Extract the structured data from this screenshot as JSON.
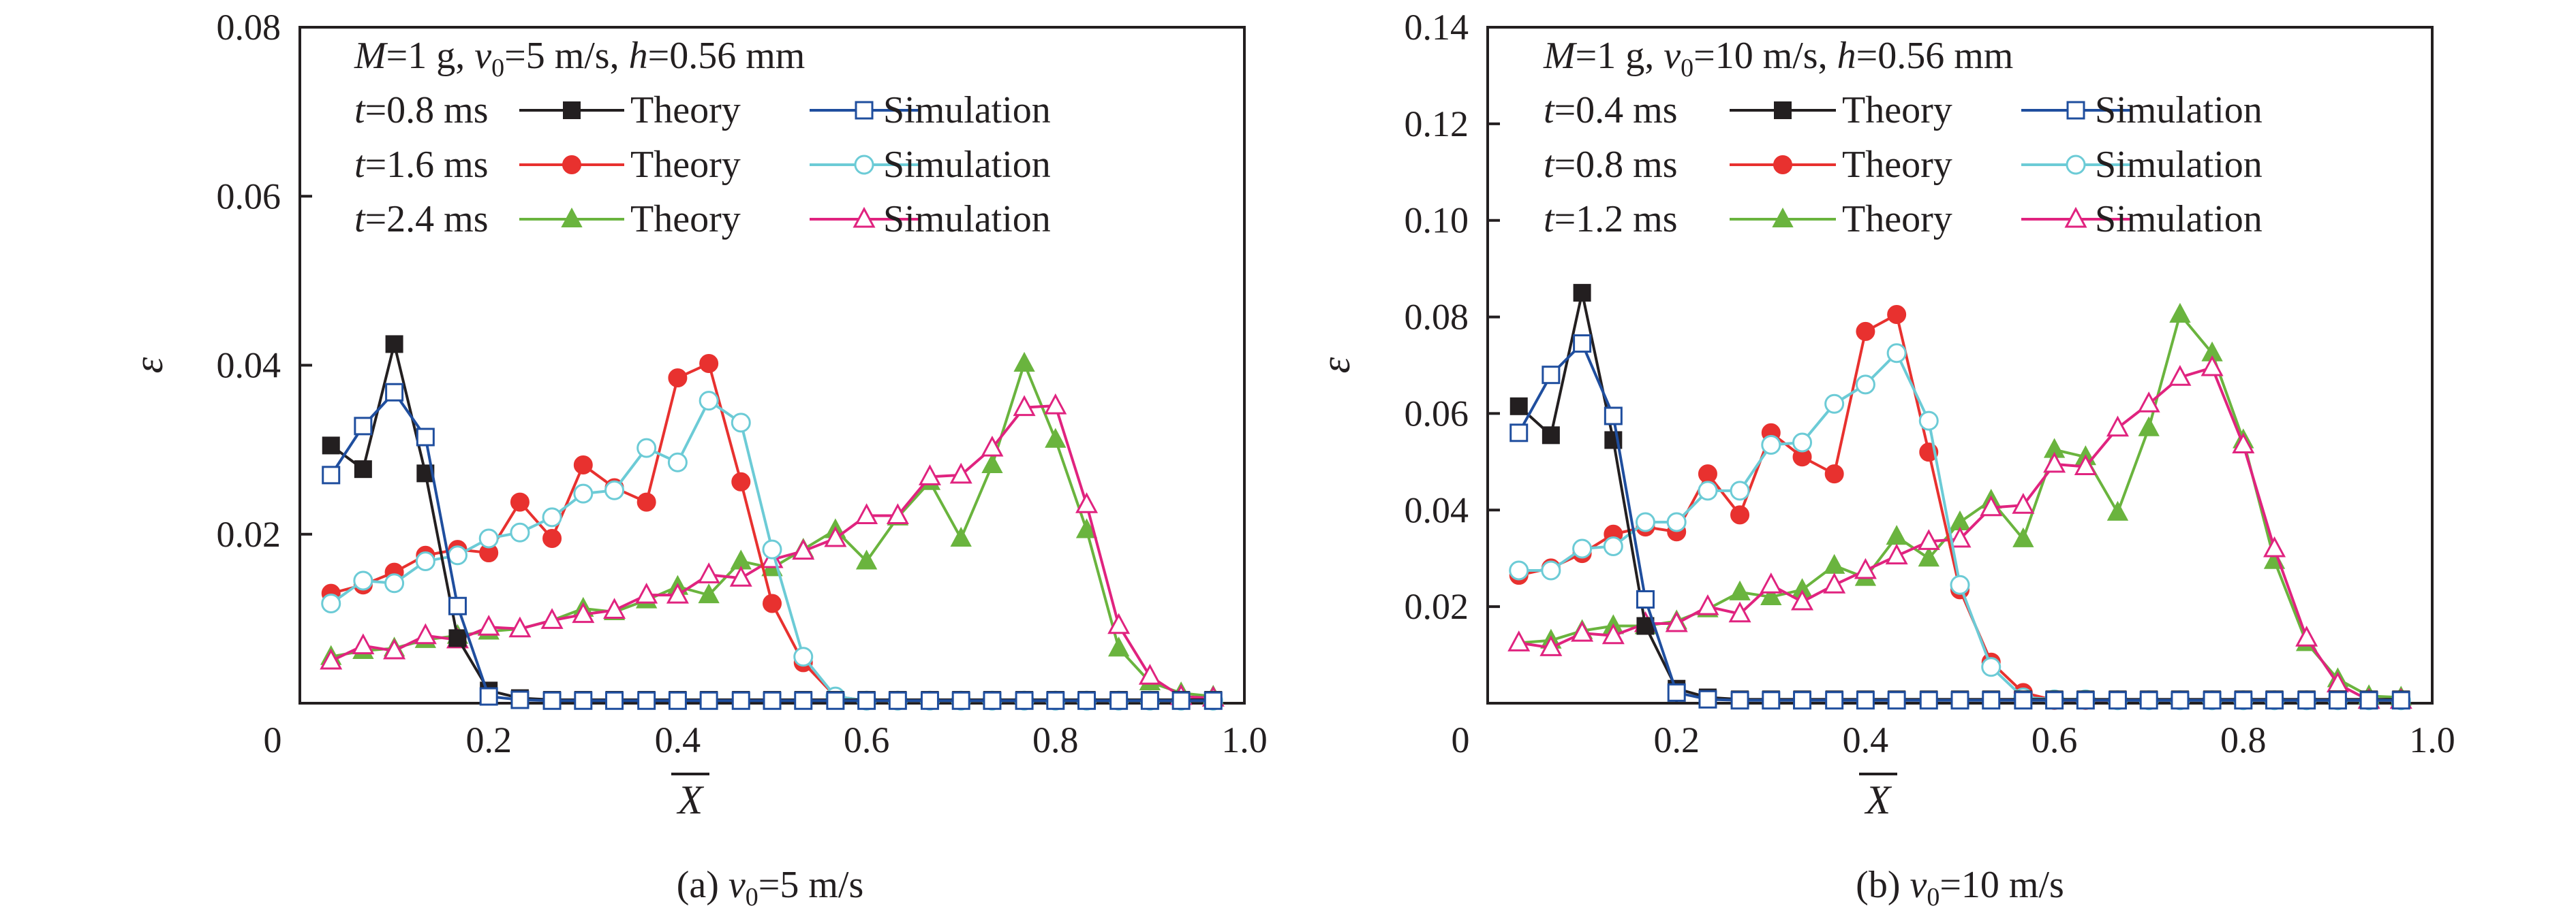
{
  "colors": {
    "theory_t1": "#231f20",
    "sim_t1": "#1f4e9e",
    "theory_t2": "#e8312f",
    "sim_t2": "#6ccbd6",
    "theory_t3": "#6ab43e",
    "sim_t3": "#e0237f",
    "axis": "#231f20"
  },
  "chart_data": [
    {
      "type": "line",
      "panel": "a",
      "caption": {
        "prefix": "(a) ",
        "var": "v",
        "sub": "0",
        "suffix": "=5 m/s"
      },
      "header": {
        "M": "=1 g, ",
        "v": "v",
        "sub": "0",
        "vval": "=5 m/s, ",
        "h": "h",
        "hval": "=0.56 mm"
      },
      "xlabel": "X",
      "ylabel": "ε",
      "xlim": [
        0,
        1.0
      ],
      "ylim": [
        0,
        0.08
      ],
      "xticks": [
        0,
        0.2,
        0.4,
        0.6,
        0.8,
        1.0
      ],
      "xtick_labels": [
        "0",
        "0.2",
        "0.4",
        "0.6",
        "0.8",
        "1.0"
      ],
      "yticks": [
        0.02,
        0.04,
        0.06,
        0.08
      ],
      "ytick_labels": [
        "0.02",
        "0.04",
        "0.06",
        "0.08"
      ],
      "legend_rows": [
        {
          "t": "=0.8 ms",
          "theory": "Theory",
          "simulation": "Simulation"
        },
        {
          "t": "=1.6 ms",
          "theory": "Theory",
          "simulation": "Simulation"
        },
        {
          "t": "=2.4 ms",
          "theory": "Theory",
          "simulation": "Simulation"
        }
      ],
      "x": [
        0.033,
        0.067,
        0.1,
        0.133,
        0.167,
        0.2,
        0.233,
        0.267,
        0.3,
        0.333,
        0.367,
        0.4,
        0.433,
        0.467,
        0.5,
        0.533,
        0.567,
        0.6,
        0.633,
        0.667,
        0.7,
        0.733,
        0.767,
        0.8,
        0.833,
        0.867,
        0.9,
        0.933,
        0.967
      ],
      "series": [
        {
          "name": "Theory",
          "row": 0,
          "kind": "theory",
          "marker": "square-filled",
          "color_key": "theory_t1",
          "values": [
            0.0305,
            0.0277,
            0.0425,
            0.0272,
            0.0077,
            0.0015,
            0.0006,
            0.0004,
            0.0004,
            0.0004,
            0.0004,
            0.0004,
            0.0004,
            0.0004,
            0.0004,
            0.0004,
            0.0004,
            0.0004,
            0.0004,
            0.0004,
            0.0004,
            0.0004,
            0.0004,
            0.0004,
            0.0004,
            0.0004,
            0.0004,
            0.0004,
            0.0004
          ]
        },
        {
          "name": "Simulation",
          "row": 0,
          "kind": "simulation",
          "marker": "square-open",
          "color_key": "sim_t1",
          "values": [
            0.027,
            0.0328,
            0.0368,
            0.0315,
            0.0115,
            0.0008,
            0.0004,
            0.0003,
            0.0003,
            0.0003,
            0.0003,
            0.0003,
            0.0003,
            0.0003,
            0.0003,
            0.0003,
            0.0003,
            0.0003,
            0.0003,
            0.0003,
            0.0003,
            0.0003,
            0.0003,
            0.0003,
            0.0003,
            0.0003,
            0.0003,
            0.0003,
            0.0003
          ]
        },
        {
          "name": "Theory",
          "row": 1,
          "kind": "theory",
          "marker": "circle-filled",
          "color_key": "theory_t2",
          "values": [
            0.013,
            0.014,
            0.0155,
            0.0175,
            0.0182,
            0.0178,
            0.0238,
            0.0195,
            0.0282,
            0.0255,
            0.0238,
            0.0385,
            0.0402,
            0.0262,
            0.0118,
            0.0048,
            0.0008,
            0.0003,
            0.0003,
            0.0003,
            0.0003,
            0.0003,
            0.0003,
            0.0003,
            0.0003,
            0.0003,
            0.0003,
            0.0003,
            0.0003
          ]
        },
        {
          "name": "Simulation",
          "row": 1,
          "kind": "simulation",
          "marker": "circle-open",
          "color_key": "sim_t2",
          "values": [
            0.0118,
            0.0145,
            0.0142,
            0.0168,
            0.0175,
            0.0195,
            0.0202,
            0.022,
            0.0248,
            0.0252,
            0.0302,
            0.0285,
            0.0358,
            0.0332,
            0.0182,
            0.0055,
            0.0008,
            0.0003,
            0.0003,
            0.0003,
            0.0003,
            0.0003,
            0.0003,
            0.0003,
            0.0003,
            0.0003,
            0.0003,
            0.0003,
            0.0003
          ]
        },
        {
          "name": "Theory",
          "row": 2,
          "kind": "theory",
          "marker": "triangle-filled",
          "color_key": "theory_t3",
          "values": [
            0.0055,
            0.0062,
            0.0065,
            0.0075,
            0.008,
            0.0085,
            0.0088,
            0.0098,
            0.0112,
            0.0108,
            0.0122,
            0.0138,
            0.0128,
            0.0168,
            0.016,
            0.0182,
            0.0205,
            0.0168,
            0.022,
            0.0262,
            0.0195,
            0.0282,
            0.0402,
            0.0312,
            0.0205,
            0.0065,
            0.0025,
            0.0012,
            0.0008
          ]
        },
        {
          "name": "Simulation",
          "row": 2,
          "kind": "simulation",
          "marker": "triangle-open",
          "color_key": "sim_t3",
          "values": [
            0.005,
            0.0068,
            0.0062,
            0.008,
            0.0075,
            0.009,
            0.0088,
            0.0098,
            0.0105,
            0.011,
            0.0128,
            0.0128,
            0.0152,
            0.0148,
            0.017,
            0.018,
            0.0195,
            0.0222,
            0.0222,
            0.0268,
            0.027,
            0.0302,
            0.035,
            0.0352,
            0.0235,
            0.0092,
            0.0032,
            0.0008,
            0.0006
          ]
        }
      ]
    },
    {
      "type": "line",
      "panel": "b",
      "caption": {
        "prefix": "(b) ",
        "var": "v",
        "sub": "0",
        "suffix": "=10 m/s"
      },
      "header": {
        "M": "=1 g, ",
        "v": "v",
        "sub": "0",
        "vval": "=10 m/s, ",
        "h": "h",
        "hval": "=0.56 mm"
      },
      "xlabel": "X",
      "ylabel": "ε",
      "xlim": [
        0,
        1.0
      ],
      "ylim": [
        0,
        0.14
      ],
      "xticks": [
        0,
        0.2,
        0.4,
        0.6,
        0.8,
        1.0
      ],
      "xtick_labels": [
        "0",
        "0.2",
        "0.4",
        "0.6",
        "0.8",
        "1.0"
      ],
      "yticks": [
        0.02,
        0.04,
        0.06,
        0.08,
        0.1,
        0.12,
        0.14
      ],
      "ytick_labels": [
        "0.02",
        "0.04",
        "0.06",
        "0.08",
        "0.10",
        "0.12",
        "0.14"
      ],
      "legend_rows": [
        {
          "t": "=0.4 ms",
          "theory": "Theory",
          "simulation": "Simulation"
        },
        {
          "t": "=0.8 ms",
          "theory": "Theory",
          "simulation": "Simulation"
        },
        {
          "t": "=1.2 ms",
          "theory": "Theory",
          "simulation": "Simulation"
        }
      ],
      "x": [
        0.033,
        0.067,
        0.1,
        0.133,
        0.167,
        0.2,
        0.233,
        0.267,
        0.3,
        0.333,
        0.367,
        0.4,
        0.433,
        0.467,
        0.5,
        0.533,
        0.567,
        0.6,
        0.633,
        0.667,
        0.7,
        0.733,
        0.767,
        0.8,
        0.833,
        0.867,
        0.9,
        0.933,
        0.967
      ],
      "series": [
        {
          "name": "Theory",
          "row": 0,
          "kind": "theory",
          "marker": "square-filled",
          "color_key": "theory_t1",
          "values": [
            0.0615,
            0.0555,
            0.085,
            0.0545,
            0.016,
            0.003,
            0.0012,
            0.0008,
            0.0008,
            0.0008,
            0.0008,
            0.0008,
            0.0008,
            0.0008,
            0.0008,
            0.0008,
            0.0008,
            0.0008,
            0.0008,
            0.0008,
            0.0008,
            0.0008,
            0.0008,
            0.0008,
            0.0008,
            0.0008,
            0.0008,
            0.0008,
            0.0008
          ]
        },
        {
          "name": "Simulation",
          "row": 0,
          "kind": "simulation",
          "marker": "square-open",
          "color_key": "sim_t1",
          "values": [
            0.056,
            0.068,
            0.0745,
            0.0595,
            0.0215,
            0.0022,
            0.0008,
            0.0006,
            0.0006,
            0.0006,
            0.0006,
            0.0006,
            0.0006,
            0.0006,
            0.0006,
            0.0006,
            0.0006,
            0.0006,
            0.0006,
            0.0006,
            0.0006,
            0.0006,
            0.0006,
            0.0006,
            0.0006,
            0.0006,
            0.0006,
            0.0006,
            0.0006
          ]
        },
        {
          "name": "Theory",
          "row": 1,
          "kind": "theory",
          "marker": "circle-filled",
          "color_key": "theory_t2",
          "values": [
            0.0265,
            0.028,
            0.031,
            0.035,
            0.0365,
            0.0355,
            0.0475,
            0.039,
            0.056,
            0.051,
            0.0475,
            0.077,
            0.0805,
            0.052,
            0.0235,
            0.0085,
            0.0022,
            0.0006,
            0.0006,
            0.0006,
            0.0006,
            0.0006,
            0.0006,
            0.0006,
            0.0006,
            0.0006,
            0.0006,
            0.0006,
            0.0006
          ]
        },
        {
          "name": "Simulation",
          "row": 1,
          "kind": "simulation",
          "marker": "circle-open",
          "color_key": "sim_t2",
          "values": [
            0.0275,
            0.0275,
            0.032,
            0.0325,
            0.0375,
            0.0375,
            0.044,
            0.044,
            0.0535,
            0.054,
            0.062,
            0.066,
            0.0725,
            0.0585,
            0.0245,
            0.0075,
            0.0012,
            0.0008,
            0.0008,
            0.0006,
            0.0006,
            0.0006,
            0.0006,
            0.0006,
            0.0006,
            0.0006,
            0.0006,
            0.0006,
            0.0006
          ]
        },
        {
          "name": "Theory",
          "row": 2,
          "kind": "theory",
          "marker": "triangle-filled",
          "color_key": "theory_t3",
          "values": [
            0.0125,
            0.013,
            0.015,
            0.016,
            0.016,
            0.017,
            0.0195,
            0.023,
            0.022,
            0.0235,
            0.0285,
            0.026,
            0.0345,
            0.03,
            0.0375,
            0.042,
            0.034,
            0.0525,
            0.051,
            0.0395,
            0.057,
            0.0805,
            0.0725,
            0.0545,
            0.0295,
            0.0125,
            0.005,
            0.0015,
            0.0012
          ]
        },
        {
          "name": "Simulation",
          "row": 2,
          "kind": "simulation",
          "marker": "triangle-open",
          "color_key": "sim_t3",
          "values": [
            0.0125,
            0.0115,
            0.0145,
            0.014,
            0.0165,
            0.0165,
            0.02,
            0.0185,
            0.0245,
            0.021,
            0.0245,
            0.0275,
            0.0305,
            0.0335,
            0.034,
            0.0405,
            0.041,
            0.0495,
            0.049,
            0.057,
            0.062,
            0.0675,
            0.0695,
            0.0535,
            0.032,
            0.0135,
            0.004,
            0.0006,
            0.0006
          ]
        }
      ]
    }
  ]
}
